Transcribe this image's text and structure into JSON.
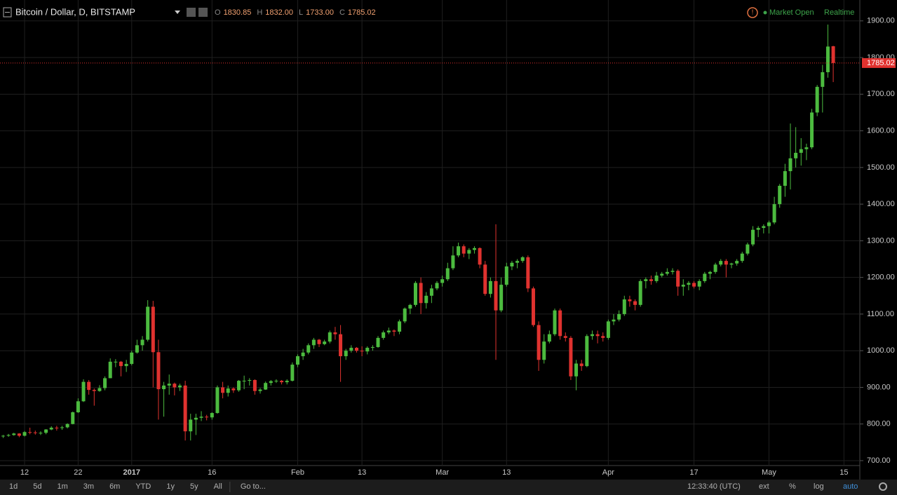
{
  "chart_data": {
    "type": "candlestick",
    "title": "Bitcoin / Dollar, D, BITSTAMP",
    "header": {
      "ohlc": [
        [
          "O",
          "1830.85"
        ],
        [
          "H",
          "1832.00"
        ],
        [
          "L",
          "1733.00"
        ],
        [
          "C",
          "1785.02"
        ]
      ],
      "status": "Market Open",
      "feed": "Realtime"
    },
    "categories": [
      null,
      null,
      null,
      null,
      "12",
      null,
      null,
      null,
      null,
      null,
      null,
      null,
      null,
      null,
      "22",
      null,
      null,
      null,
      null,
      null,
      null,
      null,
      null,
      null,
      "2017",
      null,
      null,
      null,
      null,
      null,
      null,
      null,
      null,
      null,
      null,
      null,
      null,
      null,
      null,
      "16",
      null,
      null,
      null,
      null,
      null,
      null,
      null,
      null,
      null,
      null,
      null,
      null,
      null,
      null,
      null,
      "Feb",
      null,
      null,
      null,
      null,
      null,
      null,
      null,
      null,
      null,
      null,
      null,
      "13",
      null,
      null,
      null,
      null,
      null,
      null,
      null,
      null,
      null,
      null,
      null,
      null,
      null,
      null,
      "Mar",
      null,
      null,
      null,
      null,
      null,
      null,
      null,
      null,
      null,
      null,
      null,
      "13",
      null,
      null,
      null,
      null,
      null,
      null,
      null,
      null,
      null,
      null,
      null,
      null,
      null,
      null,
      null,
      null,
      null,
      null,
      "Apr",
      null,
      null,
      null,
      null,
      null,
      null,
      null,
      null,
      null,
      null,
      null,
      null,
      null,
      null,
      null,
      "17",
      null,
      null,
      null,
      null,
      null,
      null,
      null,
      null,
      null,
      null,
      null,
      null,
      null,
      "May",
      null,
      null,
      null,
      null,
      null,
      null,
      null,
      null,
      null,
      null,
      null,
      null,
      null,
      "15"
    ],
    "values": [
      [
        767,
        770,
        762,
        768
      ],
      [
        768,
        773,
        765,
        770
      ],
      [
        770,
        776,
        768,
        774
      ],
      [
        774,
        775,
        764,
        768
      ],
      [
        768,
        781,
        766,
        778
      ],
      [
        778,
        790,
        772,
        777
      ],
      [
        777,
        782,
        771,
        776
      ],
      [
        776,
        780,
        770,
        776
      ],
      [
        776,
        786,
        772,
        785
      ],
      [
        785,
        794,
        783,
        790
      ],
      [
        790,
        795,
        782,
        789
      ],
      [
        789,
        795,
        784,
        791
      ],
      [
        791,
        802,
        788,
        800
      ],
      [
        800,
        834,
        799,
        832
      ],
      [
        832,
        870,
        830,
        862
      ],
      [
        862,
        922,
        860,
        915
      ],
      [
        915,
        920,
        880,
        893
      ],
      [
        893,
        897,
        850,
        890
      ],
      [
        890,
        906,
        888,
        898
      ],
      [
        898,
        930,
        892,
        925
      ],
      [
        925,
        979,
        925,
        970
      ],
      [
        970,
        977,
        955,
        970
      ],
      [
        970,
        972,
        930,
        958
      ],
      [
        958,
        975,
        942,
        964
      ],
      [
        964,
        1000,
        960,
        995
      ],
      [
        995,
        1030,
        992,
        1015
      ],
      [
        1015,
        1040,
        1000,
        1030
      ],
      [
        1030,
        1138,
        1025,
        1120
      ],
      [
        1120,
        1136,
        900,
        996
      ],
      [
        996,
        1030,
        812,
        895
      ],
      [
        895,
        915,
        820,
        905
      ],
      [
        905,
        935,
        880,
        910
      ],
      [
        910,
        913,
        878,
        900
      ],
      [
        900,
        910,
        890,
        905
      ],
      [
        905,
        918,
        755,
        780
      ],
      [
        780,
        828,
        755,
        812
      ],
      [
        812,
        828,
        770,
        817
      ],
      [
        817,
        835,
        808,
        820
      ],
      [
        820,
        825,
        810,
        818
      ],
      [
        818,
        832,
        812,
        830
      ],
      [
        830,
        905,
        828,
        900
      ],
      [
        900,
        915,
        870,
        885
      ],
      [
        885,
        905,
        875,
        897
      ],
      [
        897,
        900,
        885,
        892
      ],
      [
        892,
        920,
        888,
        918
      ],
      [
        918,
        932,
        895,
        918
      ],
      [
        918,
        925,
        905,
        920
      ],
      [
        920,
        922,
        880,
        890
      ],
      [
        890,
        898,
        883,
        894
      ],
      [
        894,
        916,
        893,
        912
      ],
      [
        912,
        920,
        905,
        917
      ],
      [
        917,
        922,
        912,
        918
      ],
      [
        918,
        920,
        908,
        914
      ],
      [
        914,
        922,
        908,
        918
      ],
      [
        918,
        968,
        916,
        962
      ],
      [
        962,
        990,
        955,
        985
      ],
      [
        985,
        1005,
        975,
        995
      ],
      [
        995,
        1020,
        990,
        1015
      ],
      [
        1015,
        1035,
        1005,
        1030
      ],
      [
        1030,
        1032,
        1010,
        1018
      ],
      [
        1018,
        1030,
        1015,
        1025
      ],
      [
        1025,
        1055,
        1020,
        1050
      ],
      [
        1050,
        1065,
        1030,
        1045
      ],
      [
        1045,
        1070,
        915,
        985
      ],
      [
        985,
        1005,
        975,
        1000
      ],
      [
        1000,
        1015,
        995,
        1008
      ],
      [
        1008,
        1010,
        995,
        1000
      ],
      [
        1000,
        1012,
        985,
        998
      ],
      [
        998,
        1012,
        990,
        1008
      ],
      [
        1008,
        1015,
        1000,
        1010
      ],
      [
        1010,
        1040,
        1008,
        1035
      ],
      [
        1035,
        1055,
        1030,
        1050
      ],
      [
        1050,
        1063,
        1045,
        1055
      ],
      [
        1055,
        1058,
        1040,
        1052
      ],
      [
        1052,
        1085,
        1045,
        1080
      ],
      [
        1080,
        1118,
        1075,
        1115
      ],
      [
        1115,
        1128,
        1100,
        1125
      ],
      [
        1125,
        1190,
        1120,
        1185
      ],
      [
        1185,
        1200,
        1100,
        1130
      ],
      [
        1130,
        1160,
        1115,
        1150
      ],
      [
        1150,
        1180,
        1130,
        1170
      ],
      [
        1170,
        1190,
        1165,
        1185
      ],
      [
        1185,
        1205,
        1175,
        1195
      ],
      [
        1195,
        1240,
        1190,
        1225
      ],
      [
        1225,
        1285,
        1220,
        1260
      ],
      [
        1260,
        1295,
        1255,
        1285
      ],
      [
        1285,
        1290,
        1255,
        1265
      ],
      [
        1265,
        1280,
        1250,
        1275
      ],
      [
        1275,
        1285,
        1265,
        1280
      ],
      [
        1280,
        1282,
        1225,
        1235
      ],
      [
        1235,
        1245,
        1150,
        1155
      ],
      [
        1155,
        1200,
        1145,
        1190
      ],
      [
        1190,
        1345,
        975,
        1110
      ],
      [
        1110,
        1200,
        1105,
        1180
      ],
      [
        1180,
        1240,
        1175,
        1230
      ],
      [
        1230,
        1245,
        1220,
        1240
      ],
      [
        1240,
        1250,
        1225,
        1245
      ],
      [
        1245,
        1258,
        1240,
        1255
      ],
      [
        1255,
        1260,
        1160,
        1170
      ],
      [
        1170,
        1175,
        1065,
        1070
      ],
      [
        1070,
        1080,
        945,
        975
      ],
      [
        975,
        1045,
        965,
        1025
      ],
      [
        1025,
        1055,
        1020,
        1045
      ],
      [
        1045,
        1115,
        1040,
        1110
      ],
      [
        1110,
        1115,
        1030,
        1040
      ],
      [
        1040,
        1050,
        1025,
        1035
      ],
      [
        1035,
        1040,
        920,
        930
      ],
      [
        930,
        975,
        892,
        965
      ],
      [
        965,
        975,
        945,
        958
      ],
      [
        958,
        1045,
        955,
        1040
      ],
      [
        1040,
        1055,
        1030,
        1045
      ],
      [
        1045,
        1055,
        1020,
        1040
      ],
      [
        1040,
        1050,
        1025,
        1035
      ],
      [
        1035,
        1085,
        1030,
        1080
      ],
      [
        1080,
        1100,
        1070,
        1085
      ],
      [
        1085,
        1110,
        1080,
        1100
      ],
      [
        1100,
        1150,
        1095,
        1140
      ],
      [
        1140,
        1150,
        1120,
        1135
      ],
      [
        1135,
        1140,
        1110,
        1125
      ],
      [
        1125,
        1195,
        1120,
        1190
      ],
      [
        1190,
        1200,
        1170,
        1195
      ],
      [
        1195,
        1205,
        1180,
        1190
      ],
      [
        1190,
        1215,
        1185,
        1205
      ],
      [
        1205,
        1215,
        1200,
        1210
      ],
      [
        1210,
        1225,
        1205,
        1215
      ],
      [
        1215,
        1225,
        1208,
        1218
      ],
      [
        1218,
        1222,
        1150,
        1175
      ],
      [
        1175,
        1195,
        1150,
        1180
      ],
      [
        1180,
        1190,
        1165,
        1185
      ],
      [
        1185,
        1190,
        1170,
        1175
      ],
      [
        1175,
        1195,
        1165,
        1190
      ],
      [
        1190,
        1215,
        1185,
        1210
      ],
      [
        1210,
        1218,
        1195,
        1215
      ],
      [
        1215,
        1240,
        1210,
        1235
      ],
      [
        1235,
        1250,
        1230,
        1245
      ],
      [
        1245,
        1250,
        1200,
        1235
      ],
      [
        1235,
        1240,
        1225,
        1238
      ],
      [
        1238,
        1250,
        1232,
        1245
      ],
      [
        1245,
        1270,
        1240,
        1265
      ],
      [
        1265,
        1295,
        1260,
        1290
      ],
      [
        1290,
        1340,
        1285,
        1330
      ],
      [
        1330,
        1340,
        1310,
        1335
      ],
      [
        1335,
        1345,
        1320,
        1340
      ],
      [
        1340,
        1355,
        1320,
        1350
      ],
      [
        1350,
        1420,
        1345,
        1400
      ],
      [
        1400,
        1455,
        1390,
        1450
      ],
      [
        1450,
        1510,
        1420,
        1490
      ],
      [
        1490,
        1620,
        1440,
        1525
      ],
      [
        1525,
        1610,
        1500,
        1540
      ],
      [
        1540,
        1580,
        1505,
        1550
      ],
      [
        1550,
        1565,
        1520,
        1555
      ],
      [
        1555,
        1660,
        1550,
        1650
      ],
      [
        1650,
        1725,
        1640,
        1720
      ],
      [
        1720,
        1780,
        1650,
        1760
      ],
      [
        1760,
        1890,
        1745,
        1830
      ],
      [
        1830.85,
        1832,
        1733,
        1785.02
      ],
      null,
      null,
      null
    ],
    "up_color": "#4cbb3f",
    "down_color": "#e0322f",
    "last_price": 1785.02,
    "ylim": [
      656,
      1957
    ],
    "yticks": [
      {
        "value": 700,
        "label": "700.00"
      },
      {
        "value": 800,
        "label": "800.00"
      },
      {
        "value": 900,
        "label": "900.00"
      },
      {
        "value": 1000,
        "label": "1000.00"
      },
      {
        "value": 1100,
        "label": "1100.00"
      },
      {
        "value": 1200,
        "label": "1200.00"
      },
      {
        "value": 1300,
        "label": "1300.00"
      },
      {
        "value": 1400,
        "label": "1400.00"
      },
      {
        "value": 1500,
        "label": "1500.00"
      },
      {
        "value": 1600,
        "label": "1600.00"
      },
      {
        "value": 1700,
        "label": "1700.00"
      },
      {
        "value": 1800,
        "label": "1800.00"
      },
      {
        "value": 1900,
        "label": "1900.00"
      }
    ],
    "grid": true,
    "toolbar": {
      "ranges": [
        "1d",
        "5d",
        "1m",
        "3m",
        "6m",
        "YTD",
        "1y",
        "5y",
        "All"
      ],
      "goto": "Go to...",
      "clock": "12:33:40 (UTC)",
      "options": [
        "ext",
        "%",
        "log",
        "auto"
      ]
    }
  }
}
